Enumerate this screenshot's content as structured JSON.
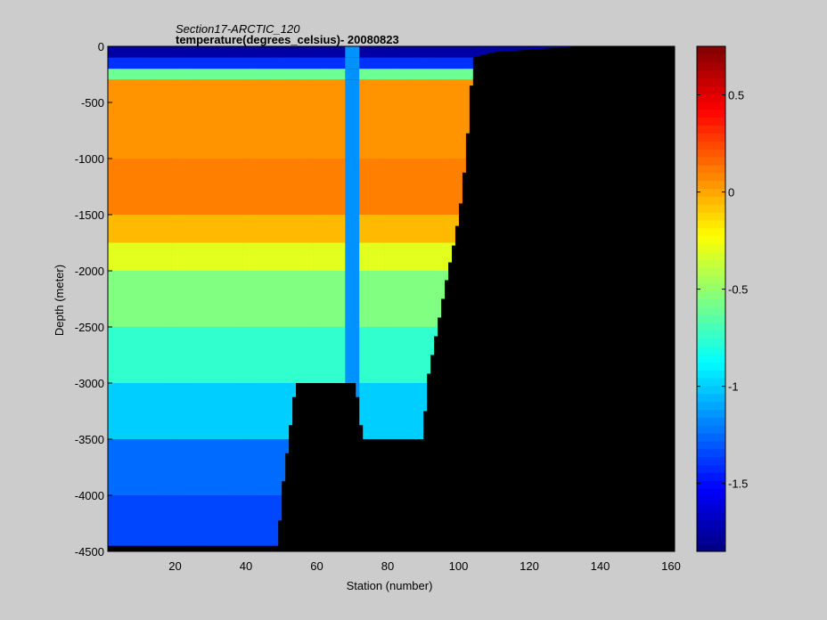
{
  "chart_data": {
    "type": "heatmap",
    "title": "Section17-ARCTIC_120",
    "subtitle": "temperature(degrees_celsius)- 20080823",
    "xlabel": "Station (number)",
    "ylabel": "Depth (meter)",
    "xlim": [
      1,
      161
    ],
    "ylim": [
      -4500,
      0
    ],
    "x_ticks": [
      20,
      40,
      60,
      80,
      100,
      120,
      140,
      160
    ],
    "y_ticks": [
      0,
      -500,
      -1000,
      -1500,
      -2000,
      -2500,
      -3000,
      -3500,
      -4000,
      -4500
    ],
    "colorbar": {
      "clim": [
        -1.85,
        0.75
      ],
      "ticks": [
        0.5,
        0,
        -0.5,
        -1,
        -1.5
      ],
      "colormap": "jet"
    },
    "grid": false,
    "mask_color": "#000000",
    "depth_levels": [
      0,
      -100,
      -200,
      -300,
      -500,
      -1000,
      -1500,
      -1750,
      -2000,
      -2500,
      -3000,
      -3500,
      -4000,
      -4500
    ],
    "bottom_profile": [
      {
        "station": 1,
        "depth": -4450
      },
      {
        "station": 49,
        "depth": -4450
      },
      {
        "station": 50,
        "depth": -4000
      },
      {
        "station": 52,
        "depth": -3500
      },
      {
        "station": 54,
        "depth": -3000
      },
      {
        "station": 71,
        "depth": -3000
      },
      {
        "station": 73,
        "depth": -3500
      },
      {
        "station": 90,
        "depth": -3500
      },
      {
        "station": 91,
        "depth": -3000
      },
      {
        "station": 94,
        "depth": -2500
      },
      {
        "station": 97,
        "depth": -2000
      },
      {
        "station": 99,
        "depth": -1700
      },
      {
        "station": 101,
        "depth": -1300
      },
      {
        "station": 103,
        "depth": -600
      },
      {
        "station": 104,
        "depth": -100
      },
      {
        "station": 110,
        "depth": -50
      },
      {
        "station": 125,
        "depth": -20
      },
      {
        "station": 135,
        "depth": 0
      }
    ],
    "layers": [
      {
        "top": 0,
        "bottom": -100,
        "temperature": -1.75
      },
      {
        "top": -100,
        "bottom": -200,
        "temperature": -1.4
      },
      {
        "top": -200,
        "bottom": -300,
        "temperature": -0.6
      },
      {
        "top": -300,
        "bottom": -1000,
        "temperature": 0.05
      },
      {
        "top": -1000,
        "bottom": -1500,
        "temperature": 0.1
      },
      {
        "top": -1500,
        "bottom": -1750,
        "temperature": -0.05
      },
      {
        "top": -1750,
        "bottom": -2000,
        "temperature": -0.3
      },
      {
        "top": -2000,
        "bottom": -2500,
        "temperature": -0.55
      },
      {
        "top": -2500,
        "bottom": -3000,
        "temperature": -0.75
      },
      {
        "top": -3000,
        "bottom": -3500,
        "temperature": -1.0
      },
      {
        "top": -3500,
        "bottom": -4000,
        "temperature": -1.25
      },
      {
        "top": -4000,
        "bottom": -4500,
        "temperature": -1.35
      }
    ],
    "vertical_band": {
      "stations": [
        68,
        72
      ],
      "temperature": -1.15
    }
  }
}
